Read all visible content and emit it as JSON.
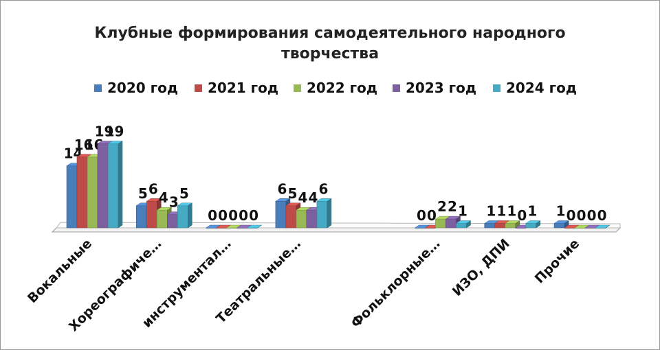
{
  "chart_data": {
    "type": "bar",
    "title": "Клубные формирования самодеятельного народного творчества",
    "categories": [
      "Вокальные",
      "Хореографиче…",
      "инструментал…",
      "Театральные…",
      "",
      "Фольклорные…",
      "ИЗО, ДПИ",
      "Прочие"
    ],
    "series": [
      {
        "name": "2020 год",
        "color": "#4a7ebb",
        "values": [
          14,
          5,
          0,
          6,
          null,
          0,
          1,
          1
        ]
      },
      {
        "name": "2021 год",
        "color": "#be4b48",
        "values": [
          16,
          6,
          0,
          5,
          null,
          0,
          1,
          0
        ]
      },
      {
        "name": "2022 год",
        "color": "#98b954",
        "values": [
          16,
          4,
          0,
          4,
          null,
          2,
          1,
          0
        ]
      },
      {
        "name": "2023 год",
        "color": "#7d60a0",
        "values": [
          19,
          3,
          0,
          4,
          null,
          2,
          0,
          0
        ]
      },
      {
        "name": "2024 год",
        "color": "#46aac5",
        "values": [
          19,
          5,
          0,
          6,
          null,
          1,
          1,
          0
        ]
      }
    ],
    "ylim": [
      0,
      20
    ],
    "grid": false,
    "legend_position": "top",
    "style": "3d-clustered-column"
  }
}
